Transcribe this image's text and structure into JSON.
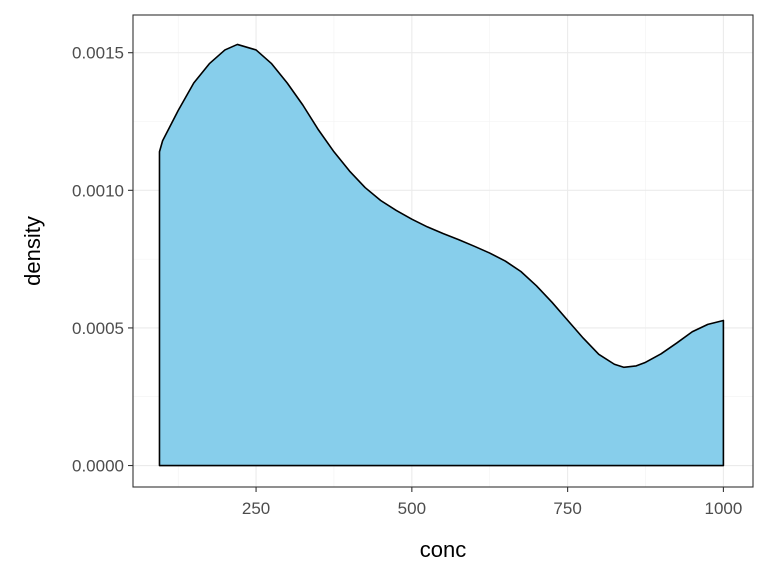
{
  "chart_data": {
    "type": "area",
    "title": "",
    "xlabel": "conc",
    "ylabel": "density",
    "xlim": [
      52.5,
      1047.5
    ],
    "ylim": [
      -7.8e-05,
      0.001637
    ],
    "x_ticks": [
      250,
      500,
      750,
      1000
    ],
    "x_tick_labels": [
      "250",
      "500",
      "750",
      "1000"
    ],
    "x_minor_ticks": [
      125,
      375,
      625,
      875
    ],
    "y_ticks": [
      0,
      0.0005,
      0.001,
      0.0015
    ],
    "y_tick_labels": [
      "0.0000",
      "0.0005",
      "0.0010",
      "0.0015"
    ],
    "y_minor_ticks": [
      0.00025,
      0.00075,
      0.00125
    ],
    "grid": true,
    "legend": "none",
    "fill_color": "#87CEEB",
    "line_color": "#000000",
    "series": [
      {
        "x": [
          95,
          100,
          125,
          150,
          175,
          200,
          220,
          250,
          275,
          300,
          325,
          350,
          375,
          400,
          425,
          450,
          475,
          500,
          525,
          550,
          575,
          600,
          625,
          650,
          675,
          700,
          725,
          750,
          775,
          800,
          825,
          840,
          860,
          875,
          900,
          925,
          950,
          975,
          1000
        ],
        "y": [
          0.00114,
          0.00118,
          0.00129,
          0.00139,
          0.00146,
          0.00151,
          0.00153,
          0.00151,
          0.00146,
          0.00139,
          0.00131,
          0.00122,
          0.00114,
          0.00107,
          0.00101,
          0.000963,
          0.000927,
          0.000895,
          0.000867,
          0.000843,
          0.000821,
          0.000797,
          0.000772,
          0.000743,
          0.000705,
          0.000653,
          0.000593,
          0.000528,
          0.000463,
          0.000404,
          0.000368,
          0.000357,
          0.000362,
          0.000375,
          0.000406,
          0.000445,
          0.000486,
          0.000513,
          0.000527
        ]
      }
    ]
  }
}
